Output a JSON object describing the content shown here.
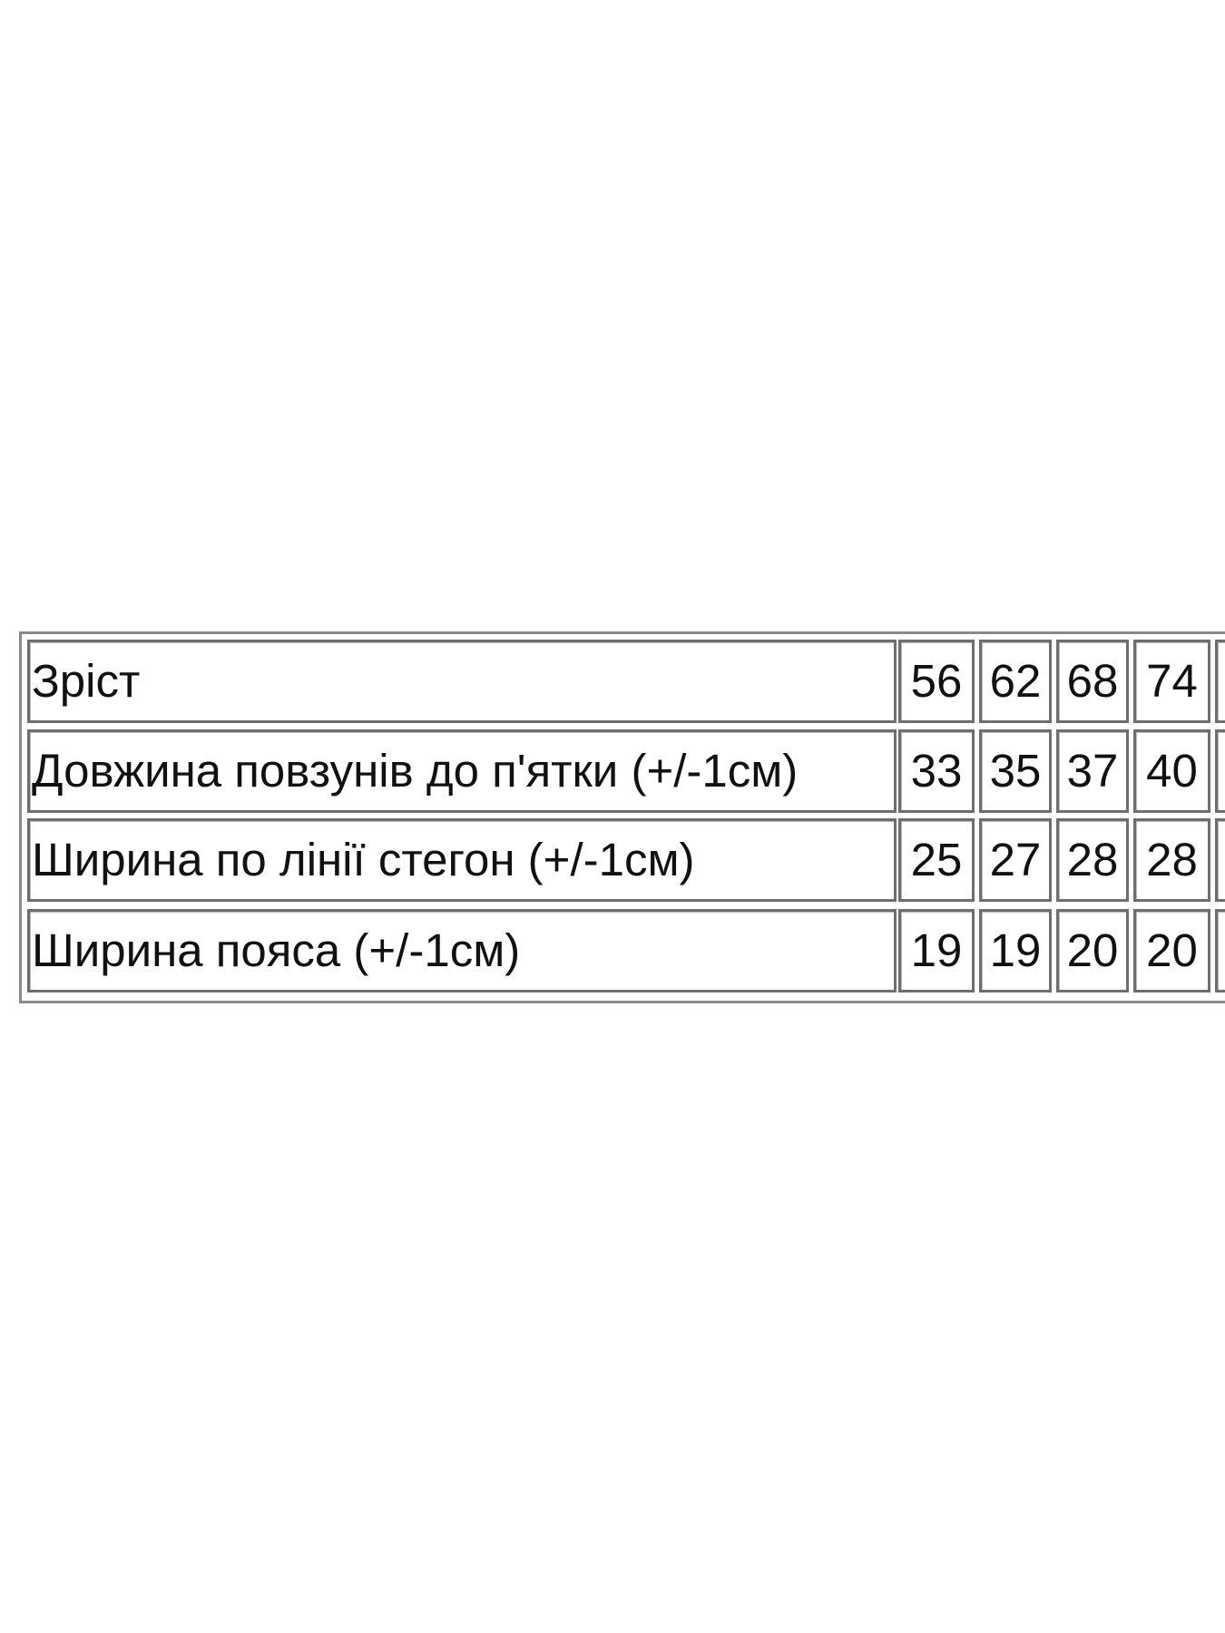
{
  "table": {
    "rows": [
      [
        "Зріст",
        "56",
        "62",
        "68",
        "74"
      ],
      [
        "Довжина повзунів до п'ятки (+/-1см)",
        "33",
        "35",
        "37",
        "40"
      ],
      [
        "Ширина по лінії стегон (+/-1см)",
        "25",
        "27",
        "28",
        "28"
      ],
      [
        "Ширина пояса (+/-1см)",
        "19",
        "19",
        "20",
        "20"
      ]
    ]
  }
}
